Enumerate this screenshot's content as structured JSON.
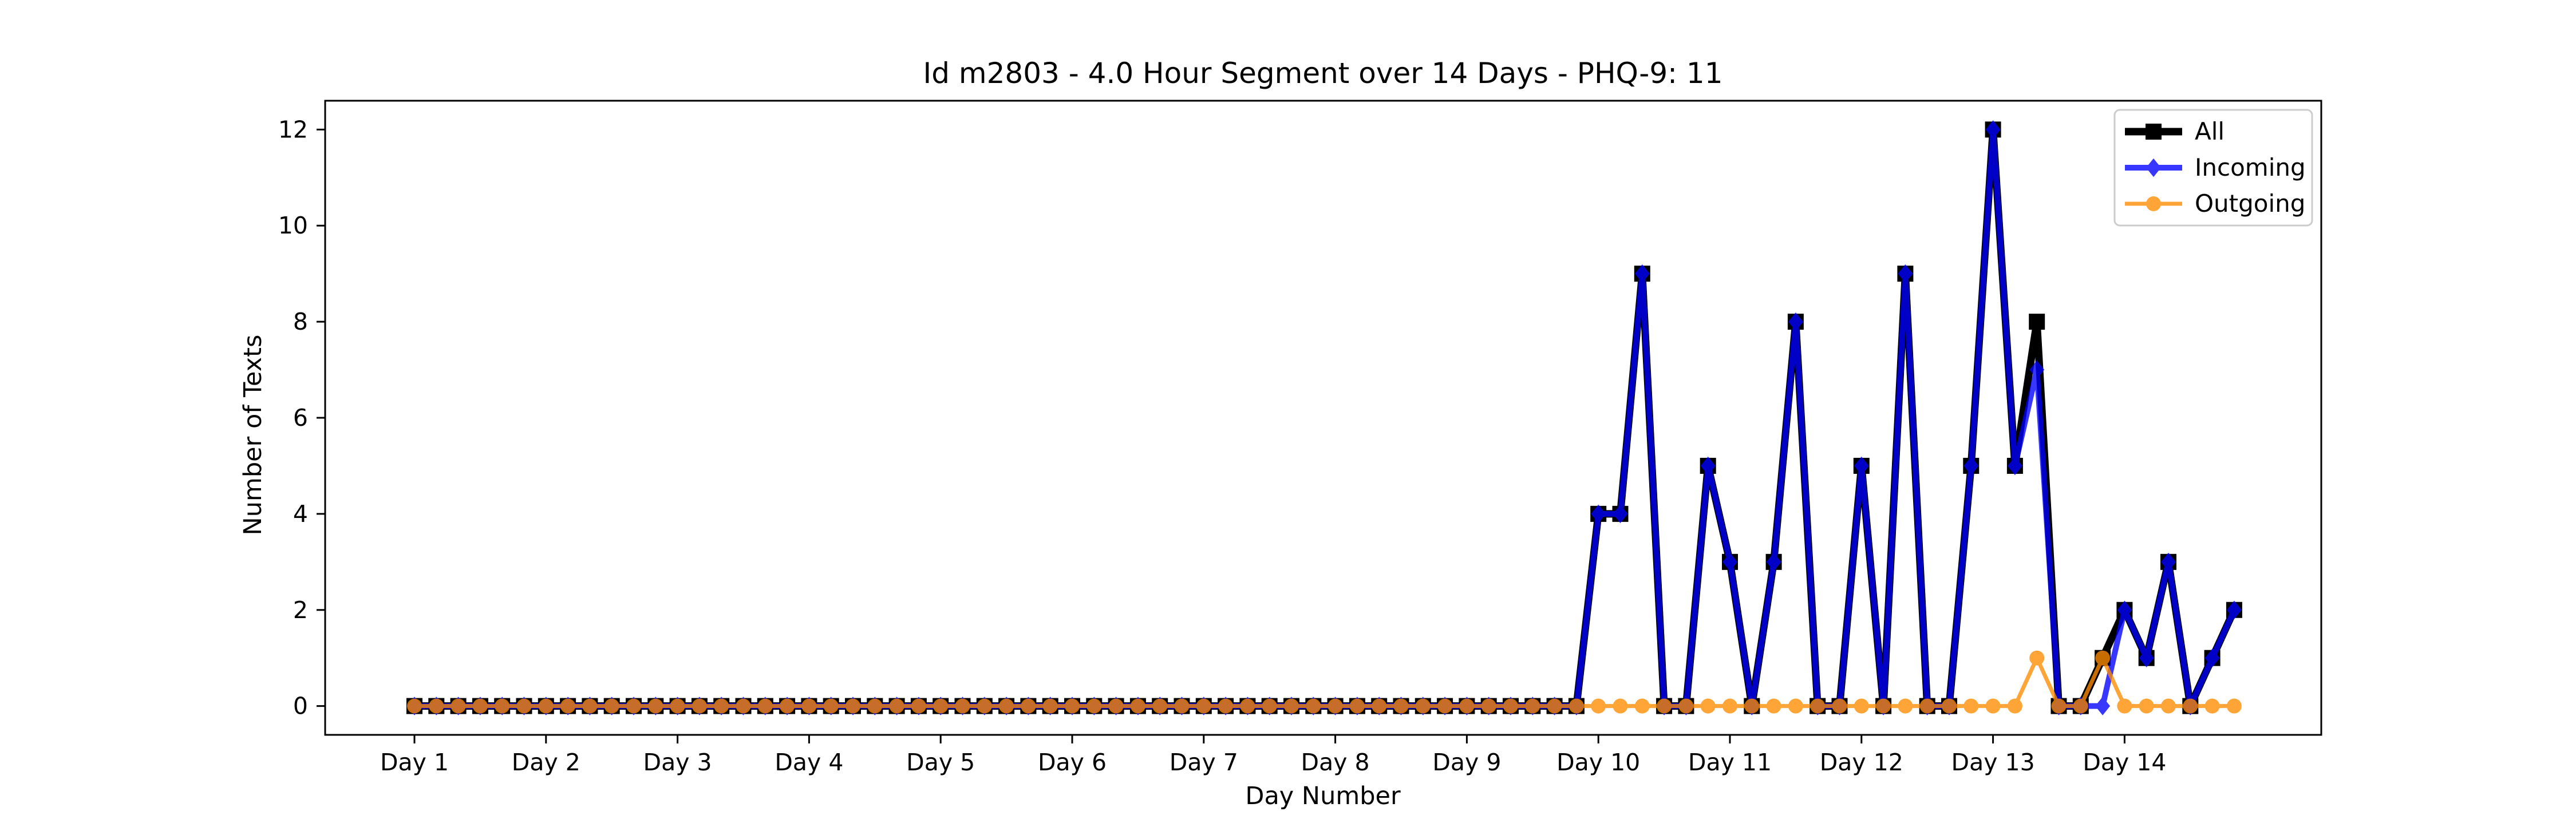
{
  "chart_data": {
    "type": "line",
    "title": "Id m2803 - 4.0 Hour Segment over 14 Days - PHQ-9: 11",
    "xlabel": "Day Number",
    "ylabel": "Number of Texts",
    "x_tick_labels": [
      "Day 1",
      "Day 2",
      "Day 3",
      "Day 4",
      "Day 5",
      "Day 6",
      "Day 7",
      "Day 8",
      "Day 9",
      "Day 10",
      "Day 11",
      "Day 12",
      "Day 13",
      "Day 14"
    ],
    "y_tick_labels": [
      "0",
      "2",
      "4",
      "6",
      "8",
      "10",
      "12"
    ],
    "y_ticks": [
      0,
      2,
      4,
      6,
      8,
      10,
      12
    ],
    "ylim": [
      -0.6,
      12.6
    ],
    "segments_per_day": 6,
    "legend_position": "top-right",
    "grid": false,
    "series": [
      {
        "name": "All",
        "color": "#000000",
        "marker": "square",
        "values": [
          0,
          0,
          0,
          0,
          0,
          0,
          0,
          0,
          0,
          0,
          0,
          0,
          0,
          0,
          0,
          0,
          0,
          0,
          0,
          0,
          0,
          0,
          0,
          0,
          0,
          0,
          0,
          0,
          0,
          0,
          0,
          0,
          0,
          0,
          0,
          0,
          0,
          0,
          0,
          0,
          0,
          0,
          0,
          0,
          0,
          0,
          0,
          0,
          0,
          0,
          0,
          0,
          0,
          0,
          4,
          4,
          9,
          0,
          0,
          5,
          3,
          0,
          3,
          8,
          0,
          0,
          5,
          0,
          9,
          0,
          0,
          5,
          12,
          5,
          8,
          0,
          0,
          1,
          2,
          1,
          3,
          0,
          1,
          2
        ]
      },
      {
        "name": "Incoming",
        "color": "#0000ff",
        "marker": "diamond",
        "values": [
          0,
          0,
          0,
          0,
          0,
          0,
          0,
          0,
          0,
          0,
          0,
          0,
          0,
          0,
          0,
          0,
          0,
          0,
          0,
          0,
          0,
          0,
          0,
          0,
          0,
          0,
          0,
          0,
          0,
          0,
          0,
          0,
          0,
          0,
          0,
          0,
          0,
          0,
          0,
          0,
          0,
          0,
          0,
          0,
          0,
          0,
          0,
          0,
          0,
          0,
          0,
          0,
          0,
          0,
          4,
          4,
          9,
          0,
          0,
          5,
          3,
          0,
          3,
          8,
          0,
          0,
          5,
          0,
          9,
          0,
          0,
          5,
          12,
          5,
          7,
          0,
          0,
          0,
          2,
          1,
          3,
          0,
          1,
          2
        ]
      },
      {
        "name": "Outgoing",
        "color": "#ff8c00",
        "marker": "circle",
        "values": [
          0,
          0,
          0,
          0,
          0,
          0,
          0,
          0,
          0,
          0,
          0,
          0,
          0,
          0,
          0,
          0,
          0,
          0,
          0,
          0,
          0,
          0,
          0,
          0,
          0,
          0,
          0,
          0,
          0,
          0,
          0,
          0,
          0,
          0,
          0,
          0,
          0,
          0,
          0,
          0,
          0,
          0,
          0,
          0,
          0,
          0,
          0,
          0,
          0,
          0,
          0,
          0,
          0,
          0,
          0,
          0,
          0,
          0,
          0,
          0,
          0,
          0,
          0,
          0,
          0,
          0,
          0,
          0,
          0,
          0,
          0,
          0,
          0,
          0,
          1,
          0,
          0,
          1,
          0,
          0,
          0,
          0,
          0,
          0
        ]
      }
    ]
  }
}
